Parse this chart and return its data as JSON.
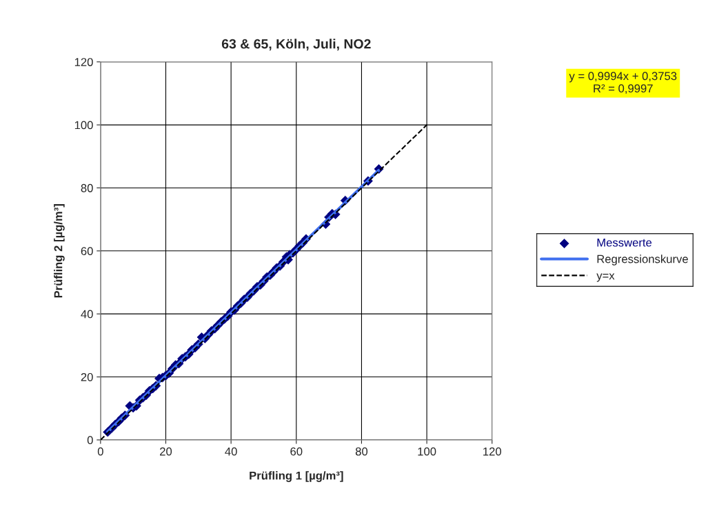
{
  "chart_data": {
    "type": "scatter",
    "title": "63 & 65, Köln, Juli, NO2",
    "xlabel": "Prüfling 1 [µg/m³]",
    "ylabel": "Prüfling 2 [µg/m³]",
    "xlim": [
      0,
      120
    ],
    "ylim": [
      0,
      120
    ],
    "xticks": [
      0,
      20,
      40,
      60,
      80,
      100,
      120
    ],
    "yticks": [
      0,
      20,
      40,
      60,
      80,
      100,
      120
    ],
    "grid": true,
    "legend": "right",
    "annotations": [
      "y = 0,9994x + 0,3753\nR² = 0,9997"
    ],
    "series": [
      {
        "name": "Messwerte",
        "color": "#000080",
        "marker": "diamond",
        "x": [
          2.2,
          3.5,
          4.5,
          5.5,
          6.5,
          7.5,
          9,
          10,
          11,
          12,
          13,
          14,
          15,
          16,
          17,
          18,
          19,
          20,
          21,
          22,
          23,
          24,
          25,
          26,
          27,
          28,
          29,
          30,
          31,
          32,
          33,
          34,
          35,
          36,
          37,
          38,
          39,
          40,
          41,
          42,
          43,
          44,
          45,
          46,
          47,
          48,
          49,
          50,
          51,
          52,
          53,
          54,
          55,
          56,
          57,
          57.5,
          58,
          59,
          60,
          61,
          62,
          63,
          69,
          70,
          71,
          72,
          75,
          82,
          85.3
        ],
        "values": [
          2.5,
          3.8,
          4.9,
          5.8,
          6.9,
          7.8,
          10.8,
          10.2,
          10.8,
          12.6,
          13.4,
          14.2,
          15.6,
          16.3,
          17.2,
          19.5,
          19.8,
          20.4,
          21.2,
          22.6,
          23.8,
          24.2,
          25.8,
          26.4,
          27.2,
          28.6,
          29.3,
          30.4,
          32.6,
          32.2,
          33.4,
          34.6,
          35.3,
          36.4,
          37.5,
          38.4,
          39.3,
          40.6,
          41.2,
          42.5,
          43.4,
          44.6,
          45.3,
          46.5,
          47.4,
          48.6,
          49.2,
          50.4,
          51.7,
          52.3,
          53.4,
          54.6,
          55.2,
          56.5,
          58.1,
          57.2,
          58.8,
          59.4,
          60.5,
          61.6,
          62.6,
          63.8,
          68.5,
          70.7,
          71.8,
          71.6,
          76,
          82.2,
          86
        ]
      },
      {
        "name": "Regressionskurve",
        "type": "line",
        "color": "#3f6fef",
        "marker": "none",
        "line_style": "solid",
        "x": [
          2.2,
          85.3
        ],
        "values": [
          2.6,
          85.6
        ]
      },
      {
        "name": "y=x",
        "type": "line",
        "color": "#000000",
        "marker": "none",
        "line_style": "dashed",
        "x": [
          0,
          100
        ],
        "values": [
          0,
          100
        ]
      }
    ]
  }
}
